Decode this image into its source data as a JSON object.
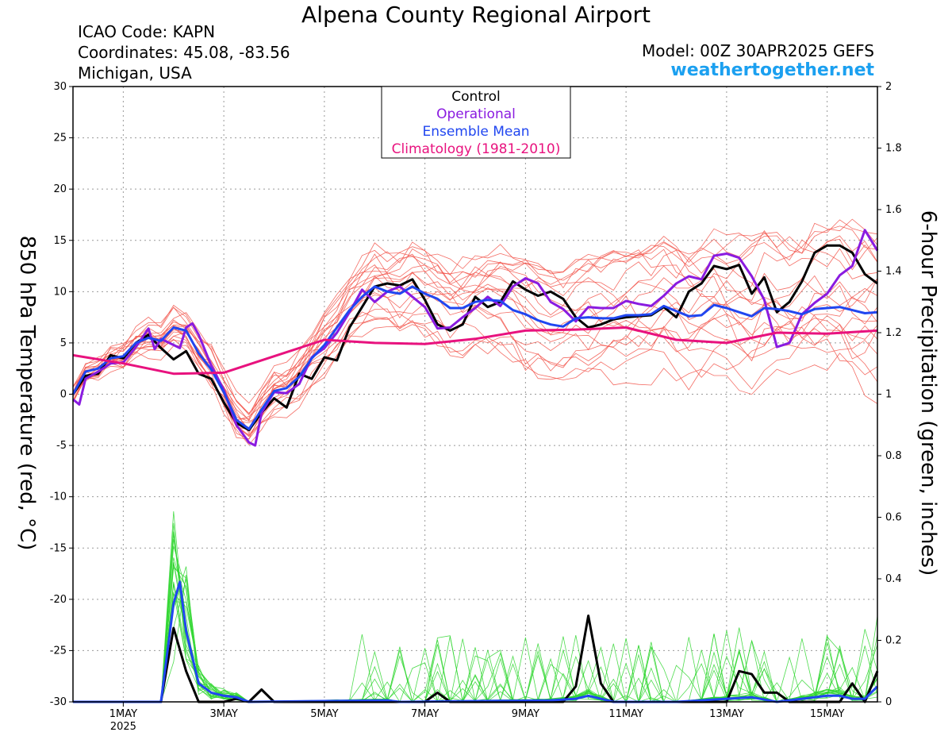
{
  "header": {
    "title": "Alpena County Regional Airport",
    "icao": "ICAO Code: KAPN",
    "coordinates": "Coordinates: 45.08, -83.56",
    "region": "Michigan, USA",
    "model": "Model: 00Z 30APR2025 GEFS",
    "site": "weathertogether.net"
  },
  "colors": {
    "control": "#000000",
    "operational": "#8a1be0",
    "ensemble_mean": "#2046f0",
    "climatology": "#e8127e",
    "members_temp": "#f2544a",
    "members_precip": "#2ed62e",
    "site": "#1ba0f0"
  },
  "chart_data": {
    "type": "line",
    "ylabel_left": "850 hPa Temperature (red, °C)",
    "ylabel_right": "6-hour Precipitation (green, inches)",
    "ylim_left": [
      -30,
      30
    ],
    "ylim_right": [
      0,
      2
    ],
    "yticks_left": [
      "30",
      "25",
      "20",
      "15",
      "10",
      "5",
      "0",
      "-5",
      "-10",
      "-15",
      "-20",
      "-25",
      "-30"
    ],
    "yticks_right": [
      "2",
      "1.8",
      "1.6",
      "1.4",
      "1.2",
      "1",
      "0.8",
      "0.6",
      "0.4",
      "0.2",
      "0"
    ],
    "x_unit": "days since 30APR2025 00Z",
    "xlim": [
      0,
      16
    ],
    "xticks": [
      {
        "x": 1,
        "label": "1MAY",
        "sub": "2025"
      },
      {
        "x": 3,
        "label": "3MAY",
        "sub": ""
      },
      {
        "x": 5,
        "label": "5MAY",
        "sub": ""
      },
      {
        "x": 7,
        "label": "7MAY",
        "sub": ""
      },
      {
        "x": 9,
        "label": "9MAY",
        "sub": ""
      },
      {
        "x": 11,
        "label": "11MAY",
        "sub": ""
      },
      {
        "x": 13,
        "label": "13MAY",
        "sub": ""
      },
      {
        "x": 15,
        "label": "15MAY",
        "sub": ""
      }
    ],
    "grid": true,
    "legend": {
      "placement": "top-center",
      "entries": [
        "Control",
        "Operational",
        "Ensemble Mean",
        "Climatology (1981-2010)"
      ]
    },
    "series": [
      {
        "name": "Control",
        "axis": "left",
        "width": 3,
        "points": [
          [
            0,
            0
          ],
          [
            0.25,
            1.8
          ],
          [
            0.5,
            2
          ],
          [
            0.75,
            3.8
          ],
          [
            1,
            3.5
          ],
          [
            1.25,
            5
          ],
          [
            1.5,
            5.8
          ],
          [
            1.75,
            4.5
          ],
          [
            2,
            3.4
          ],
          [
            2.25,
            4.2
          ],
          [
            2.5,
            2
          ],
          [
            2.75,
            1.5
          ],
          [
            3,
            -0.8
          ],
          [
            3.25,
            -2.8
          ],
          [
            3.5,
            -3.5
          ],
          [
            3.75,
            -1.8
          ],
          [
            4,
            -0.4
          ],
          [
            4.25,
            -1.3
          ],
          [
            4.5,
            2
          ],
          [
            4.75,
            1.5
          ],
          [
            5,
            3.6
          ],
          [
            5.25,
            3.3
          ],
          [
            5.5,
            6.5
          ],
          [
            5.75,
            8.5
          ],
          [
            6,
            10.5
          ],
          [
            6.25,
            10.8
          ],
          [
            6.5,
            10.6
          ],
          [
            6.75,
            11.2
          ],
          [
            7,
            9.2
          ],
          [
            7.25,
            6.8
          ],
          [
            7.5,
            6.2
          ],
          [
            7.75,
            6.8
          ],
          [
            8,
            9.5
          ],
          [
            8.25,
            8.5
          ],
          [
            8.5,
            9
          ],
          [
            8.75,
            11
          ],
          [
            9,
            10.2
          ],
          [
            9.25,
            9.6
          ],
          [
            9.5,
            10
          ],
          [
            9.75,
            9.3
          ],
          [
            10,
            7.5
          ],
          [
            10.25,
            6.5
          ],
          [
            10.5,
            6.8
          ],
          [
            10.75,
            7.3
          ],
          [
            11,
            7.5
          ],
          [
            11.25,
            7.6
          ],
          [
            11.5,
            7.7
          ],
          [
            11.75,
            8.5
          ],
          [
            12,
            7.5
          ],
          [
            12.25,
            10
          ],
          [
            12.5,
            10.8
          ],
          [
            12.75,
            12.5
          ],
          [
            13,
            12.2
          ],
          [
            13.25,
            12.6
          ],
          [
            13.5,
            9.8
          ],
          [
            13.75,
            11.4
          ],
          [
            14,
            8
          ],
          [
            14.25,
            9
          ],
          [
            14.5,
            11
          ],
          [
            14.75,
            13.8
          ],
          [
            15,
            14.5
          ],
          [
            15.25,
            14.5
          ],
          [
            15.5,
            13.8
          ],
          [
            15.75,
            11.7
          ],
          [
            16,
            10.8
          ]
        ]
      },
      {
        "name": "Operational",
        "axis": "left",
        "width": 3,
        "points": [
          [
            0,
            -0.5
          ],
          [
            0.125,
            -1
          ],
          [
            0.25,
            1.5
          ],
          [
            0.5,
            2.2
          ],
          [
            0.75,
            3
          ],
          [
            1,
            3.1
          ],
          [
            1.25,
            4.6
          ],
          [
            1.5,
            6.4
          ],
          [
            1.625,
            4.4
          ],
          [
            1.75,
            5.4
          ],
          [
            2,
            4.8
          ],
          [
            2.125,
            4.5
          ],
          [
            2.25,
            6.5
          ],
          [
            2.375,
            6.9
          ],
          [
            2.5,
            5.8
          ],
          [
            2.75,
            2.8
          ],
          [
            3,
            0.4
          ],
          [
            3.25,
            -3
          ],
          [
            3.5,
            -4.7
          ],
          [
            3.625,
            -5
          ],
          [
            3.75,
            -1.8
          ],
          [
            4,
            0.2
          ],
          [
            4.25,
            0.1
          ],
          [
            4.5,
            1
          ],
          [
            4.75,
            3.6
          ],
          [
            5,
            4.5
          ],
          [
            5.25,
            6
          ],
          [
            5.5,
            8
          ],
          [
            5.75,
            10.2
          ],
          [
            6,
            9
          ],
          [
            6.25,
            10
          ],
          [
            6.5,
            10.5
          ],
          [
            6.75,
            9.5
          ],
          [
            7,
            8.5
          ],
          [
            7.25,
            6.4
          ],
          [
            7.5,
            6.5
          ],
          [
            7.75,
            7.5
          ],
          [
            8,
            8.4
          ],
          [
            8.25,
            9.5
          ],
          [
            8.5,
            8.6
          ],
          [
            8.75,
            10.5
          ],
          [
            9,
            11.3
          ],
          [
            9.25,
            10.8
          ],
          [
            9.5,
            9
          ],
          [
            9.75,
            8.3
          ],
          [
            10,
            7.1
          ],
          [
            10.25,
            8.5
          ],
          [
            10.5,
            8.4
          ],
          [
            10.75,
            8.4
          ],
          [
            11,
            9.1
          ],
          [
            11.25,
            8.8
          ],
          [
            11.5,
            8.6
          ],
          [
            11.75,
            9.6
          ],
          [
            12,
            10.8
          ],
          [
            12.25,
            11.5
          ],
          [
            12.5,
            11.2
          ],
          [
            12.75,
            13.5
          ],
          [
            13,
            13.7
          ],
          [
            13.25,
            13.3
          ],
          [
            13.5,
            11.5
          ],
          [
            13.75,
            9.2
          ],
          [
            14,
            4.6
          ],
          [
            14.25,
            5
          ],
          [
            14.5,
            7.8
          ],
          [
            14.75,
            8.9
          ],
          [
            15,
            9.8
          ],
          [
            15.25,
            11.6
          ],
          [
            15.5,
            12.5
          ],
          [
            15.75,
            16
          ],
          [
            16,
            14
          ]
        ]
      },
      {
        "name": "Ensemble Mean",
        "axis": "left",
        "width": 3,
        "points": [
          [
            0,
            0
          ],
          [
            0.25,
            2.2
          ],
          [
            0.5,
            2.5
          ],
          [
            0.75,
            3.5
          ],
          [
            1,
            3.7
          ],
          [
            1.25,
            5
          ],
          [
            1.5,
            5.5
          ],
          [
            1.75,
            5.2
          ],
          [
            2,
            6.5
          ],
          [
            2.25,
            6.2
          ],
          [
            2.5,
            4
          ],
          [
            2.75,
            2.4
          ],
          [
            3,
            0.2
          ],
          [
            3.25,
            -2.5
          ],
          [
            3.5,
            -3.4
          ],
          [
            3.75,
            -1.5
          ],
          [
            4,
            0.3
          ],
          [
            4.25,
            0.6
          ],
          [
            4.5,
            1.7
          ],
          [
            4.75,
            3.5
          ],
          [
            5,
            4.8
          ],
          [
            5.25,
            6.5
          ],
          [
            5.5,
            8.2
          ],
          [
            5.75,
            9.5
          ],
          [
            6,
            10.5
          ],
          [
            6.25,
            10
          ],
          [
            6.5,
            9.8
          ],
          [
            6.75,
            10.5
          ],
          [
            7,
            9.8
          ],
          [
            7.25,
            9.3
          ],
          [
            7.5,
            8.4
          ],
          [
            7.75,
            8.4
          ],
          [
            8,
            9
          ],
          [
            8.25,
            9.2
          ],
          [
            8.5,
            9.1
          ],
          [
            8.75,
            8.2
          ],
          [
            9,
            7.8
          ],
          [
            9.25,
            7.2
          ],
          [
            9.5,
            6.8
          ],
          [
            9.75,
            6.6
          ],
          [
            10,
            7.4
          ],
          [
            10.25,
            7.5
          ],
          [
            10.5,
            7.4
          ],
          [
            10.75,
            7.4
          ],
          [
            11,
            7.7
          ],
          [
            11.25,
            7.7
          ],
          [
            11.5,
            7.8
          ],
          [
            11.75,
            8.6
          ],
          [
            12,
            8.1
          ],
          [
            12.25,
            7.6
          ],
          [
            12.5,
            7.7
          ],
          [
            12.75,
            8.7
          ],
          [
            13,
            8.4
          ],
          [
            13.25,
            8
          ],
          [
            13.5,
            7.6
          ],
          [
            13.75,
            8.4
          ],
          [
            14,
            8.3
          ],
          [
            14.25,
            8.1
          ],
          [
            14.5,
            7.8
          ],
          [
            14.75,
            8.3
          ],
          [
            15,
            8.4
          ],
          [
            15.25,
            8.5
          ],
          [
            15.5,
            8.2
          ],
          [
            15.75,
            7.9
          ],
          [
            16,
            8
          ]
        ]
      },
      {
        "name": "Climatology (1981-2010)",
        "axis": "left",
        "width": 3,
        "points": [
          [
            0,
            3.8
          ],
          [
            1,
            3
          ],
          [
            2,
            2
          ],
          [
            3,
            2.1
          ],
          [
            4,
            3.7
          ],
          [
            5,
            5.3
          ],
          [
            6,
            5
          ],
          [
            7,
            4.9
          ],
          [
            8,
            5.4
          ],
          [
            9,
            6.2
          ],
          [
            10,
            6.3
          ],
          [
            11,
            6.5
          ],
          [
            12,
            5.3
          ],
          [
            13,
            5
          ],
          [
            14,
            6
          ],
          [
            15,
            5.9
          ],
          [
            16,
            6.2
          ]
        ]
      },
      {
        "name": "Control",
        "axis": "right",
        "width": 3,
        "points": [
          [
            0,
            0
          ],
          [
            1.5,
            0
          ],
          [
            1.75,
            0
          ],
          [
            2,
            0.24
          ],
          [
            2.25,
            0.1
          ],
          [
            2.5,
            0
          ],
          [
            3,
            0
          ],
          [
            3.25,
            0.01
          ],
          [
            3.5,
            0
          ],
          [
            3.75,
            0.04
          ],
          [
            4,
            0
          ],
          [
            7,
            0
          ],
          [
            7.25,
            0.03
          ],
          [
            7.5,
            0
          ],
          [
            9.25,
            0
          ],
          [
            9.5,
            0
          ],
          [
            9.75,
            0
          ],
          [
            10,
            0.05
          ],
          [
            10.25,
            0.28
          ],
          [
            10.5,
            0.06
          ],
          [
            10.75,
            0
          ],
          [
            13,
            0
          ],
          [
            13.25,
            0.1
          ],
          [
            13.5,
            0.09
          ],
          [
            13.75,
            0.03
          ],
          [
            14,
            0.03
          ],
          [
            14.25,
            0
          ],
          [
            15.25,
            0
          ],
          [
            15.5,
            0.06
          ],
          [
            15.75,
            0
          ],
          [
            16,
            0.1
          ]
        ]
      },
      {
        "name": "Ensemble Mean",
        "axis": "right",
        "width": 3,
        "points": [
          [
            0,
            0
          ],
          [
            1.5,
            0
          ],
          [
            1.75,
            0
          ],
          [
            2,
            0.32
          ],
          [
            2.125,
            0.39
          ],
          [
            2.25,
            0.23
          ],
          [
            2.5,
            0.06
          ],
          [
            2.75,
            0.03
          ],
          [
            3,
            0.02
          ],
          [
            3.25,
            0.015
          ],
          [
            3.5,
            0
          ],
          [
            6.25,
            0.005
          ],
          [
            6.5,
            0
          ],
          [
            9.5,
            0.005
          ],
          [
            10,
            0.01
          ],
          [
            10.25,
            0.02
          ],
          [
            10.5,
            0.01
          ],
          [
            10.75,
            0
          ],
          [
            12,
            0
          ],
          [
            13.5,
            0.015
          ],
          [
            14,
            0
          ],
          [
            15,
            0.02
          ],
          [
            15.25,
            0.02
          ],
          [
            15.5,
            0.01
          ],
          [
            15.75,
            0.01
          ],
          [
            16,
            0.05
          ]
        ]
      }
    ]
  }
}
